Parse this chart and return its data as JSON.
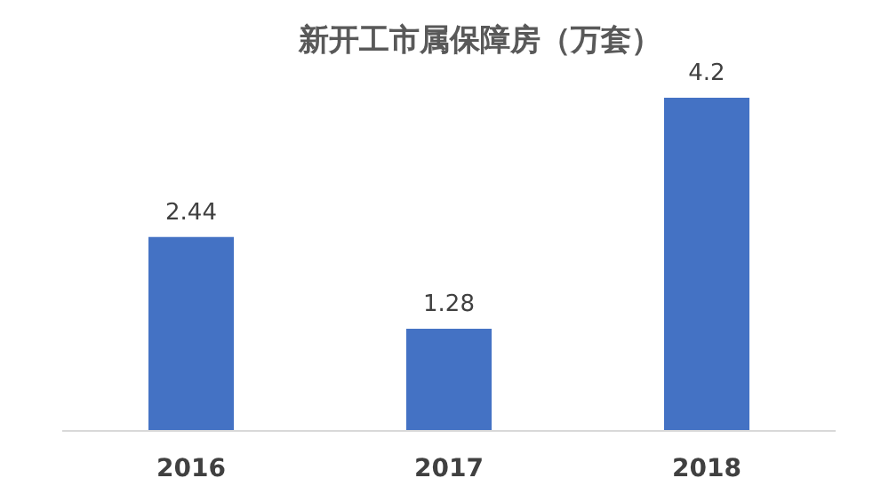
{
  "chart_data": {
    "type": "bar",
    "title": "新开工市属保障房（万套）",
    "categories": [
      "2016",
      "2017",
      "2018"
    ],
    "values": [
      2.44,
      1.28,
      4.2
    ],
    "color": "#4472c4",
    "data_labels": true
  }
}
